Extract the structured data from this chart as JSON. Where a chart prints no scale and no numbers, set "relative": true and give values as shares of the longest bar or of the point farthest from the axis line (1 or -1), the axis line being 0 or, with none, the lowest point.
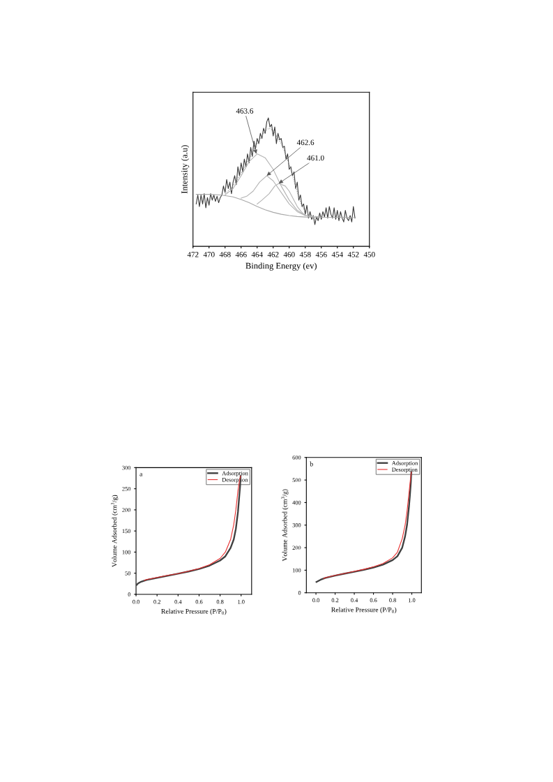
{
  "chart_data": [
    {
      "type": "line",
      "xlabel": "Binding Energy (ev)",
      "ylabel": "Intensity (a.u)",
      "relative": true,
      "xlim": [
        472,
        450
      ],
      "xticks": [
        472,
        470,
        468,
        466,
        464,
        462,
        460,
        458,
        456,
        454,
        452,
        450
      ],
      "tick_labels": "x",
      "grid": false,
      "legend": false,
      "marker": "none",
      "annotations": [
        {
          "text": "463.6",
          "x": 464.1,
          "y": 0.72
        },
        {
          "text": "462.6",
          "x": 462.8,
          "y": 0.55
        },
        {
          "text": "461.0",
          "x": 461.3,
          "y": 0.49
        }
      ],
      "series": [
        {
          "color": "#3a3a3a",
          "x": [
            471.6,
            471.4,
            471.2,
            471.0,
            470.8,
            470.6,
            470.4,
            470.2,
            470.0,
            469.8,
            469.6,
            469.4,
            469.2,
            469.0,
            468.8,
            468.6,
            468.4,
            468.2,
            468.0,
            467.8,
            467.6,
            467.4,
            467.2,
            467.0,
            466.8,
            466.6,
            466.4,
            466.2,
            466.0,
            465.8,
            465.6,
            465.4,
            465.2,
            465.0,
            464.8,
            464.6,
            464.4,
            464.2,
            464.0,
            463.8,
            463.6,
            463.4,
            463.2,
            463.0,
            462.8,
            462.6,
            462.4,
            462.2,
            462.0,
            461.8,
            461.6,
            461.4,
            461.2,
            461.0,
            460.8,
            460.6,
            460.4,
            460.2,
            460.0,
            459.8,
            459.6,
            459.4,
            459.2,
            459.0,
            458.8,
            458.6,
            458.4,
            458.2,
            458.0,
            457.8,
            457.6,
            457.4,
            457.2,
            457.0,
            456.8,
            456.6,
            456.4,
            456.2,
            456.0,
            455.8,
            455.6,
            455.4,
            455.2,
            455.0,
            454.8,
            454.6,
            454.4,
            454.2,
            454.0,
            453.8,
            453.6,
            453.4,
            453.2,
            453.0,
            452.8,
            452.6,
            452.4,
            452.2,
            452.0,
            451.8
          ],
          "values": [
            0.33,
            0.4,
            0.31,
            0.4,
            0.33,
            0.41,
            0.3,
            0.38,
            0.32,
            0.41,
            0.36,
            0.4,
            0.35,
            0.39,
            0.34,
            0.38,
            0.4,
            0.47,
            0.42,
            0.52,
            0.45,
            0.5,
            0.41,
            0.5,
            0.55,
            0.48,
            0.62,
            0.55,
            0.65,
            0.58,
            0.68,
            0.62,
            0.72,
            0.65,
            0.77,
            0.7,
            0.82,
            0.76,
            0.84,
            0.8,
            0.88,
            0.84,
            0.92,
            0.88,
            0.97,
            1.0,
            0.93,
            0.95,
            0.86,
            0.93,
            0.8,
            0.88,
            0.83,
            0.84,
            0.77,
            0.78,
            0.68,
            0.72,
            0.6,
            0.62,
            0.55,
            0.58,
            0.45,
            0.5,
            0.36,
            0.4,
            0.31,
            0.33,
            0.25,
            0.32,
            0.22,
            0.27,
            0.21,
            0.24,
            0.17,
            0.23,
            0.2,
            0.26,
            0.21,
            0.27,
            0.23,
            0.3,
            0.22,
            0.31,
            0.25,
            0.22,
            0.3,
            0.21,
            0.28,
            0.2,
            0.27,
            0.22,
            0.19,
            0.28,
            0.22,
            0.2,
            0.24,
            0.19,
            0.31,
            0.22
          ]
        },
        {
          "color": "#a8a8a8",
          "x": [
            471.6,
            470,
            468.5,
            467,
            466,
            465,
            464,
            463,
            462,
            461,
            460,
            459,
            458,
            456,
            452
          ],
          "values": [
            0.405,
            0.405,
            0.4,
            0.385,
            0.365,
            0.34,
            0.31,
            0.285,
            0.265,
            0.25,
            0.24,
            0.232,
            0.228,
            0.226,
            0.225
          ]
        },
        {
          "color": "#b4b4b4",
          "x": [
            468,
            467,
            466,
            465,
            464,
            463,
            462,
            461,
            460,
            459,
            458,
            457,
            456
          ],
          "values": [
            0.4,
            0.45,
            0.55,
            0.66,
            0.72,
            0.69,
            0.6,
            0.47,
            0.36,
            0.28,
            0.24,
            0.228,
            0.226
          ]
        },
        {
          "color": "#b4b4b4",
          "x": [
            466,
            465.3,
            464.5,
            463.7,
            462.8,
            462,
            461,
            460,
            459,
            458,
            457
          ],
          "values": [
            0.375,
            0.39,
            0.43,
            0.5,
            0.55,
            0.51,
            0.42,
            0.33,
            0.27,
            0.24,
            0.23
          ]
        },
        {
          "color": "#b4b4b4",
          "x": [
            464,
            463.4,
            462.5,
            461.8,
            461.3,
            460.5,
            460,
            459.5,
            459,
            458.5,
            458,
            457
          ],
          "values": [
            0.33,
            0.36,
            0.41,
            0.47,
            0.49,
            0.47,
            0.43,
            0.37,
            0.31,
            0.27,
            0.24,
            0.23
          ]
        },
        {
          "color": "#909090",
          "line_style": "dotted",
          "x": [
            468,
            467,
            466,
            465,
            464,
            463,
            462.5,
            462,
            461,
            460,
            459.5,
            459,
            458.5,
            458,
            457,
            456
          ],
          "values": [
            0.41,
            0.47,
            0.57,
            0.68,
            0.8,
            0.9,
            0.92,
            0.9,
            0.8,
            0.64,
            0.53,
            0.42,
            0.33,
            0.27,
            0.235,
            0.228
          ]
        }
      ]
    },
    {
      "type": "line",
      "xlabel": "Relative Pressure (P/P$_{0}$)",
      "ylabel": "Volume Adsorbed (cm$^{3}$/g)",
      "xlim": [
        0,
        1.1
      ],
      "xticks": [
        {
          "value": 0.0,
          "label": "0.0"
        },
        {
          "value": 0.2,
          "label": "0.2"
        },
        {
          "value": 0.4,
          "label": "0.4"
        },
        {
          "value": 0.6,
          "label": "0.6"
        },
        {
          "value": 0.8,
          "label": "0.8"
        },
        {
          "value": 1.0,
          "label": "1.0"
        }
      ],
      "ylim": [
        0,
        300
      ],
      "yticks": [
        0,
        50,
        100,
        150,
        200,
        250,
        300
      ],
      "grid": false,
      "legend": "top right",
      "marker": "none",
      "annotations": [
        "a"
      ],
      "series": [
        {
          "name": "Adsorption",
          "color": "#404040",
          "x": [
            0.005,
            0.02,
            0.05,
            0.1,
            0.2,
            0.3,
            0.4,
            0.5,
            0.6,
            0.7,
            0.8,
            0.85,
            0.9,
            0.93,
            0.95,
            0.97,
            0.98,
            0.99,
            0.995
          ],
          "values": [
            22,
            26,
            30,
            34,
            39,
            44,
            49,
            54,
            60,
            68,
            80,
            90,
            110,
            130,
            155,
            195,
            225,
            255,
            280
          ]
        },
        {
          "name": "Desorption",
          "color": "#e83030",
          "x": [
            0.08,
            0.1,
            0.2,
            0.3,
            0.4,
            0.5,
            0.6,
            0.7,
            0.8,
            0.85,
            0.9,
            0.93,
            0.95,
            0.97,
            0.985,
            0.995
          ],
          "values": [
            33,
            35,
            40,
            45,
            49,
            55,
            61,
            70,
            85,
            100,
            130,
            165,
            200,
            245,
            270,
            280
          ]
        }
      ]
    },
    {
      "type": "line",
      "xlabel": "Relative Pressure (P/P$_{0}$)",
      "ylabel": "Volume Adsorbed (cm$^{3}$/g)",
      "xlim": [
        -0.1,
        1.1
      ],
      "xticks": [
        {
          "value": 0.0,
          "label": "0.0"
        },
        {
          "value": 0.2,
          "label": "0.2"
        },
        {
          "value": 0.4,
          "label": "0.4"
        },
        {
          "value": 0.6,
          "label": "0.6"
        },
        {
          "value": 0.8,
          "label": "0.8"
        },
        {
          "value": 1.0,
          "label": "1.0"
        }
      ],
      "ylim": [
        0,
        600
      ],
      "yticks": [
        0,
        100,
        200,
        300,
        400,
        500,
        600
      ],
      "grid": false,
      "legend": "top right",
      "marker": "none",
      "annotations": [
        "b"
      ],
      "series": [
        {
          "name": "Adsorption",
          "color": "#404040",
          "x": [
            0.005,
            0.05,
            0.1,
            0.2,
            0.3,
            0.4,
            0.5,
            0.6,
            0.7,
            0.8,
            0.85,
            0.9,
            0.93,
            0.95,
            0.97,
            0.98,
            0.99,
            0.995
          ],
          "values": [
            48,
            58,
            66,
            76,
            85,
            93,
            102,
            112,
            125,
            145,
            162,
            200,
            250,
            300,
            380,
            430,
            490,
            535
          ]
        },
        {
          "name": "Desorption",
          "color": "#e83030",
          "x": [
            0.08,
            0.1,
            0.2,
            0.3,
            0.4,
            0.5,
            0.6,
            0.7,
            0.8,
            0.85,
            0.9,
            0.93,
            0.95,
            0.97,
            0.985,
            0.995
          ],
          "values": [
            63,
            67,
            77,
            86,
            95,
            104,
            115,
            130,
            155,
            180,
            240,
            300,
            360,
            440,
            500,
            535
          ]
        }
      ]
    }
  ]
}
